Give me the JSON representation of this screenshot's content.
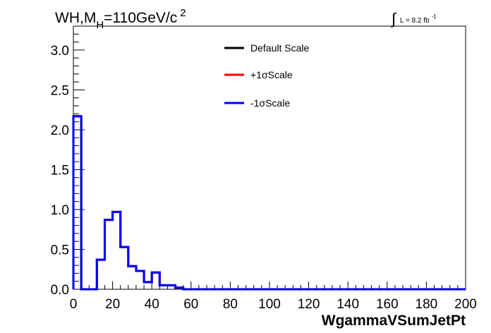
{
  "chart_data": {
    "type": "line",
    "title_parts": {
      "main": "WH,M",
      "sub": "H",
      "rest": "=110GeV/c",
      "sup": "2"
    },
    "lumi_parts": {
      "integral": "∫",
      "text": "L = 8.2 fb",
      "sup": "-1"
    },
    "xlabel": "WgammaVSumJetPt",
    "ylabel": "",
    "xlim": [
      0,
      200
    ],
    "ylim": [
      0,
      3.3
    ],
    "x_ticks": [
      "0",
      "20",
      "40",
      "60",
      "80",
      "100",
      "120",
      "140",
      "160",
      "180",
      "200"
    ],
    "y_ticks": [
      "0.0",
      "0.5",
      "1.0",
      "1.5",
      "2.0",
      "2.5",
      "3.0"
    ],
    "bin_edges": [
      0,
      4,
      8,
      12,
      16,
      20,
      24,
      28,
      32,
      36,
      40,
      44,
      48,
      52,
      56,
      60,
      64,
      68,
      72,
      76,
      80,
      84,
      88,
      92,
      96,
      100,
      104,
      108,
      112,
      116,
      120,
      124,
      128,
      132,
      136,
      140,
      144,
      148,
      152,
      156,
      160,
      164,
      168,
      172,
      176,
      180,
      184,
      188,
      192,
      196,
      200
    ],
    "series": [
      {
        "name": "Default Scale",
        "color": "#000000",
        "values": [
          2.17,
          0,
          0,
          0.37,
          0.87,
          0.97,
          0.53,
          0.29,
          0.23,
          0.09,
          0.21,
          0.05,
          0.05,
          0.02,
          0,
          0,
          0,
          0,
          0,
          0,
          0,
          0,
          0,
          0,
          0,
          0,
          0,
          0,
          0,
          0,
          0,
          0,
          0,
          0,
          0,
          0,
          0,
          0,
          0,
          0,
          0,
          0,
          0,
          0,
          0,
          0,
          0,
          0,
          0,
          0
        ]
      },
      {
        "name": "+1σScale",
        "color": "#ff0000",
        "values": [
          2.17,
          0,
          0,
          0.37,
          0.87,
          0.97,
          0.53,
          0.29,
          0.23,
          0.09,
          0.21,
          0.05,
          0.05,
          0.02,
          0,
          0,
          0,
          0,
          0,
          0,
          0,
          0,
          0,
          0,
          0,
          0,
          0,
          0,
          0,
          0,
          0,
          0,
          0,
          0,
          0,
          0,
          0,
          0,
          0,
          0,
          0,
          0,
          0,
          0,
          0,
          0,
          0,
          0,
          0,
          0
        ]
      },
      {
        "name": "-1σScale",
        "color": "#0000ff",
        "values": [
          2.17,
          0,
          0,
          0.37,
          0.87,
          0.97,
          0.53,
          0.29,
          0.23,
          0.09,
          0.21,
          0.05,
          0.05,
          0.02,
          0,
          0,
          0,
          0,
          0,
          0,
          0,
          0,
          0,
          0,
          0,
          0,
          0,
          0,
          0,
          0,
          0,
          0,
          0,
          0,
          0,
          0,
          0,
          0,
          0,
          0,
          0,
          0,
          0,
          0,
          0,
          0,
          0,
          0,
          0,
          0
        ]
      }
    ],
    "legend_position": "top-center",
    "grid": false
  }
}
